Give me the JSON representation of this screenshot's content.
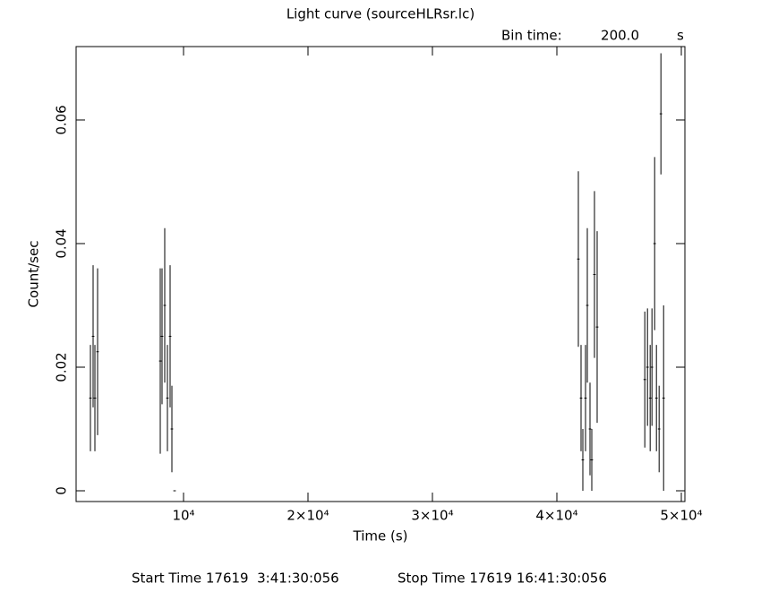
{
  "chart_data": {
    "type": "scatter",
    "title": "Light curve (sourceHLRsr.lc)",
    "annotations": [
      "Bin time:",
      "200.0",
      "s",
      "Start Time 17619  3:41:30:056",
      "Stop Time 17619 16:41:30:056"
    ],
    "x_label": "Time (s)",
    "y_label": "Count/sec",
    "x": [
      2518,
      2734,
      2878,
      3094,
      8130,
      8273,
      8489,
      8705,
      8921,
      9065,
      9281,
      41726,
      41942,
      42086,
      42302,
      42446,
      42662,
      42806,
      43021,
      43237,
      47065,
      47281,
      47496,
      47640,
      47856,
      48000,
      48216,
      48360,
      48576
    ],
    "values": [
      0.015,
      0.025,
      0.015,
      0.0225,
      0.021,
      0.025,
      0.03,
      0.015,
      0.025,
      0.01,
      0,
      0.0375,
      0.015,
      0.005,
      0.015,
      0.03,
      0.01,
      0.005,
      0.035,
      0.0265,
      0.018,
      0.02,
      0.015,
      0.02,
      0.04,
      0.015,
      0.01,
      0.061,
      0.015
    ],
    "errors": [
      0.0086,
      0.0115,
      0.0086,
      0.0135,
      0.015,
      0.011,
      0.0125,
      0.0086,
      0.0115,
      0.007,
      0,
      0.0142,
      0.0086,
      0.005,
      0.0086,
      0.0125,
      0.0075,
      0.005,
      0.0135,
      0.0155,
      0.011,
      0.0095,
      0.0086,
      0.0095,
      0.014,
      0.0086,
      0.007,
      0.0098,
      0.015
    ],
    "xerr": 100,
    "color": "#000000",
    "xlim": [
      1367,
      50288
    ],
    "xticks": [
      {
        "value": 10000,
        "label": "10⁴"
      },
      {
        "value": 20000,
        "label": "2×10⁴"
      },
      {
        "value": 30000,
        "label": "3×10⁴"
      },
      {
        "value": 40000,
        "label": "4×10⁴"
      },
      {
        "value": 50000,
        "label": "5×10⁴"
      }
    ],
    "ylim": [
      -0.00174,
      0.07188
    ],
    "yticks": [
      0,
      0.02,
      0.04,
      0.06
    ],
    "grid": false
  }
}
